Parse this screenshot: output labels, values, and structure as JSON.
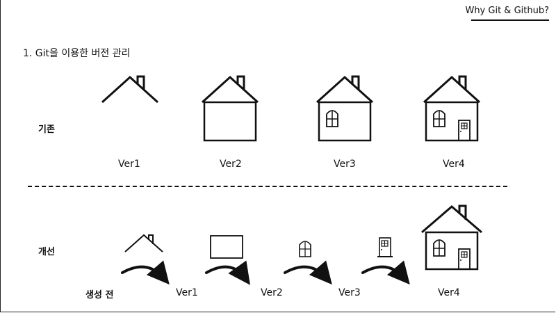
{
  "header": {
    "title": "Why Git & Github?"
  },
  "section": {
    "title": "1. Git을 이용한 버전 관리"
  },
  "rows": {
    "existing": {
      "label": "기존",
      "versions": [
        "Ver1",
        "Ver2",
        "Ver3",
        "Ver4"
      ]
    },
    "improved": {
      "label": "개선",
      "start_label": "생성 전",
      "versions": [
        "Ver1",
        "Ver2",
        "Ver3",
        "Ver4"
      ]
    }
  }
}
